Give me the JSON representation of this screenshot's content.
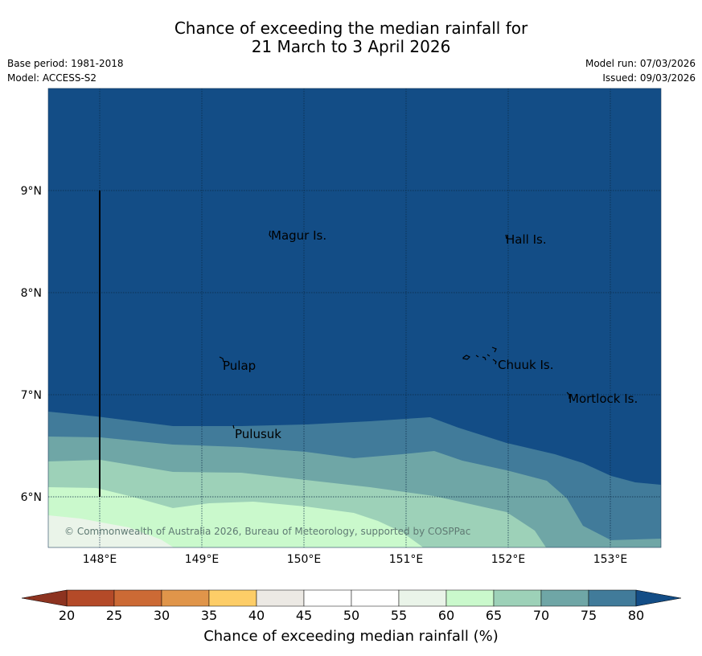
{
  "header": {
    "title_line1": "Chance of exceeding the median rainfall for",
    "title_line2": "21 March to 3 April 2026",
    "base_period": "Base period: 1981-2018",
    "model": "Model: ACCESS-S2",
    "model_run": "Model run: 07/03/2026",
    "issued": "Issued: 09/03/2026"
  },
  "map": {
    "lat_labels": [
      "9°N",
      "8°N",
      "7°N",
      "6°N"
    ],
    "lon_labels": [
      "148°E",
      "149°E",
      "150°E",
      "151°E",
      "152°E",
      "153°E"
    ],
    "places": [
      "Magur Is.",
      "Hall Is.",
      "Pulap",
      "Chuuk Is.",
      "Mortlock Is.",
      "Pulusuk"
    ],
    "copyright": "© Commonwealth of Australia 2026, Bureau of Meteorology, supported by COSPPac"
  },
  "colorbar": {
    "ticks": [
      "20",
      "25",
      "30",
      "35",
      "40",
      "45",
      "50",
      "55",
      "60",
      "65",
      "70",
      "75",
      "80"
    ],
    "colors": [
      "#b44a28",
      "#cc6a35",
      "#e0954a",
      "#fdcd67",
      "#ece9e4",
      "#ffffff",
      "#ffffff",
      "#eaf4e9",
      "#caf9cc",
      "#9dd1b8",
      "#6fa6a6",
      "#417b9a"
    ],
    "under_color": "#8d3320",
    "over_color": "#134d86",
    "label": "Chance of exceeding median rainfall (%)"
  }
}
